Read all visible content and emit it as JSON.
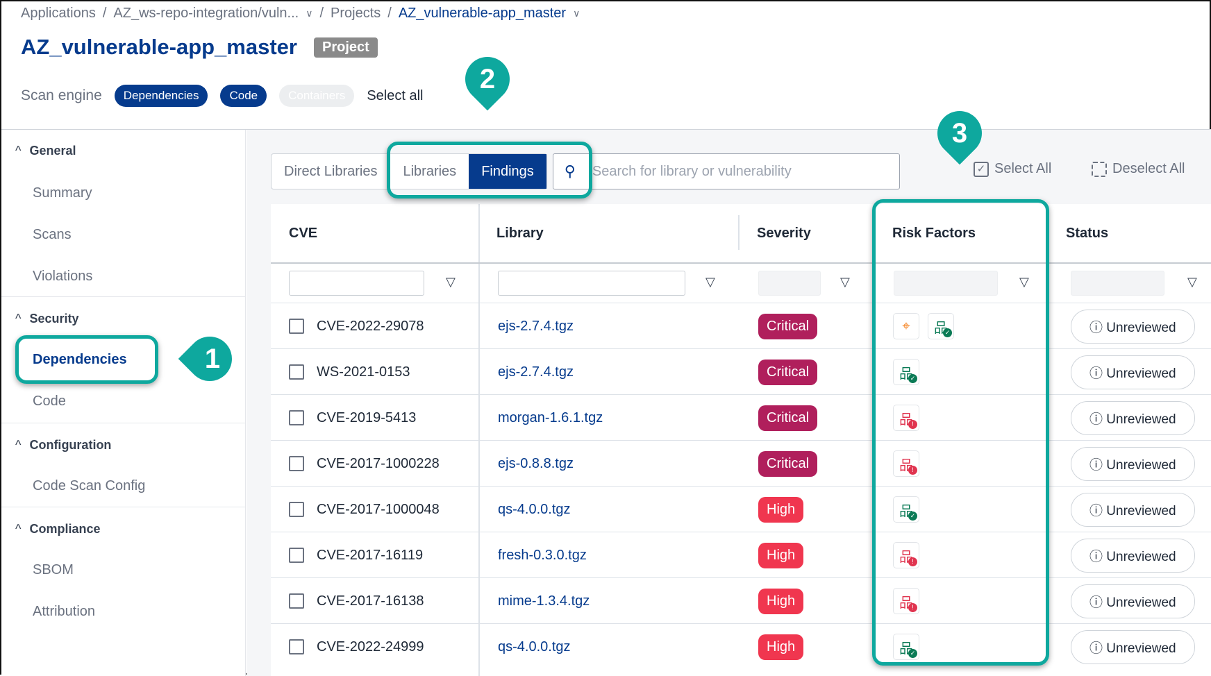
{
  "breadcrumb": [
    "Applications",
    "AZ_ws-repo-integration/vuln...",
    "Projects",
    "AZ_vulnerable-app_master"
  ],
  "title": "AZ_vulnerable-app_master",
  "badge": "Project",
  "scan_engine": {
    "label": "Scan engine",
    "options": [
      "Dependencies",
      "Code",
      "Containers"
    ],
    "select_all": "Select all"
  },
  "sidebar": {
    "groups": [
      {
        "label": "General",
        "items": [
          "Summary",
          "Scans",
          "Violations"
        ]
      },
      {
        "label": "Security",
        "items": [
          "Dependencies",
          "Code"
        ]
      },
      {
        "label": "Configuration",
        "items": [
          "Code Scan Config"
        ]
      },
      {
        "label": "Compliance",
        "items": [
          "SBOM",
          "Attribution"
        ]
      }
    ],
    "active": "Dependencies"
  },
  "tabs": [
    "Direct Libraries",
    "Libraries",
    "Findings"
  ],
  "active_tab": "Findings",
  "search": {
    "placeholder": "Search for library or vulnerability"
  },
  "select_all": "Select All",
  "deselect_all": "Deselect All",
  "columns": [
    "CVE",
    "Library",
    "Severity",
    "Risk Factors",
    "Status"
  ],
  "colors": {
    "accent": "#063b8d",
    "critical": "#b01f5c",
    "high": "#f0364f",
    "callout": "#0ea89e"
  },
  "rows": [
    {
      "cve": "CVE-2022-29078",
      "library": "ejs-2.7.4.tgz",
      "severity": "Critical",
      "risk": [
        "exploit-target",
        "reachable-ok"
      ],
      "status": "Unreviewed"
    },
    {
      "cve": "WS-2021-0153",
      "library": "ejs-2.7.4.tgz",
      "severity": "Critical",
      "risk": [
        "reachable-ok"
      ],
      "status": "Unreviewed"
    },
    {
      "cve": "CVE-2019-5413",
      "library": "morgan-1.6.1.tgz",
      "severity": "Critical",
      "risk": [
        "reachable-alert"
      ],
      "status": "Unreviewed"
    },
    {
      "cve": "CVE-2017-1000228",
      "library": "ejs-0.8.8.tgz",
      "severity": "Critical",
      "risk": [
        "reachable-alert"
      ],
      "status": "Unreviewed"
    },
    {
      "cve": "CVE-2017-1000048",
      "library": "qs-4.0.0.tgz",
      "severity": "High",
      "risk": [
        "reachable-ok"
      ],
      "status": "Unreviewed"
    },
    {
      "cve": "CVE-2017-16119",
      "library": "fresh-0.3.0.tgz",
      "severity": "High",
      "risk": [
        "reachable-alert"
      ],
      "status": "Unreviewed"
    },
    {
      "cve": "CVE-2017-16138",
      "library": "mime-1.3.4.tgz",
      "severity": "High",
      "risk": [
        "reachable-alert"
      ],
      "status": "Unreviewed"
    },
    {
      "cve": "CVE-2022-24999",
      "library": "qs-4.0.0.tgz",
      "severity": "High",
      "risk": [
        "reachable-ok"
      ],
      "status": "Unreviewed"
    }
  ],
  "callouts": [
    "1",
    "2",
    "3"
  ]
}
